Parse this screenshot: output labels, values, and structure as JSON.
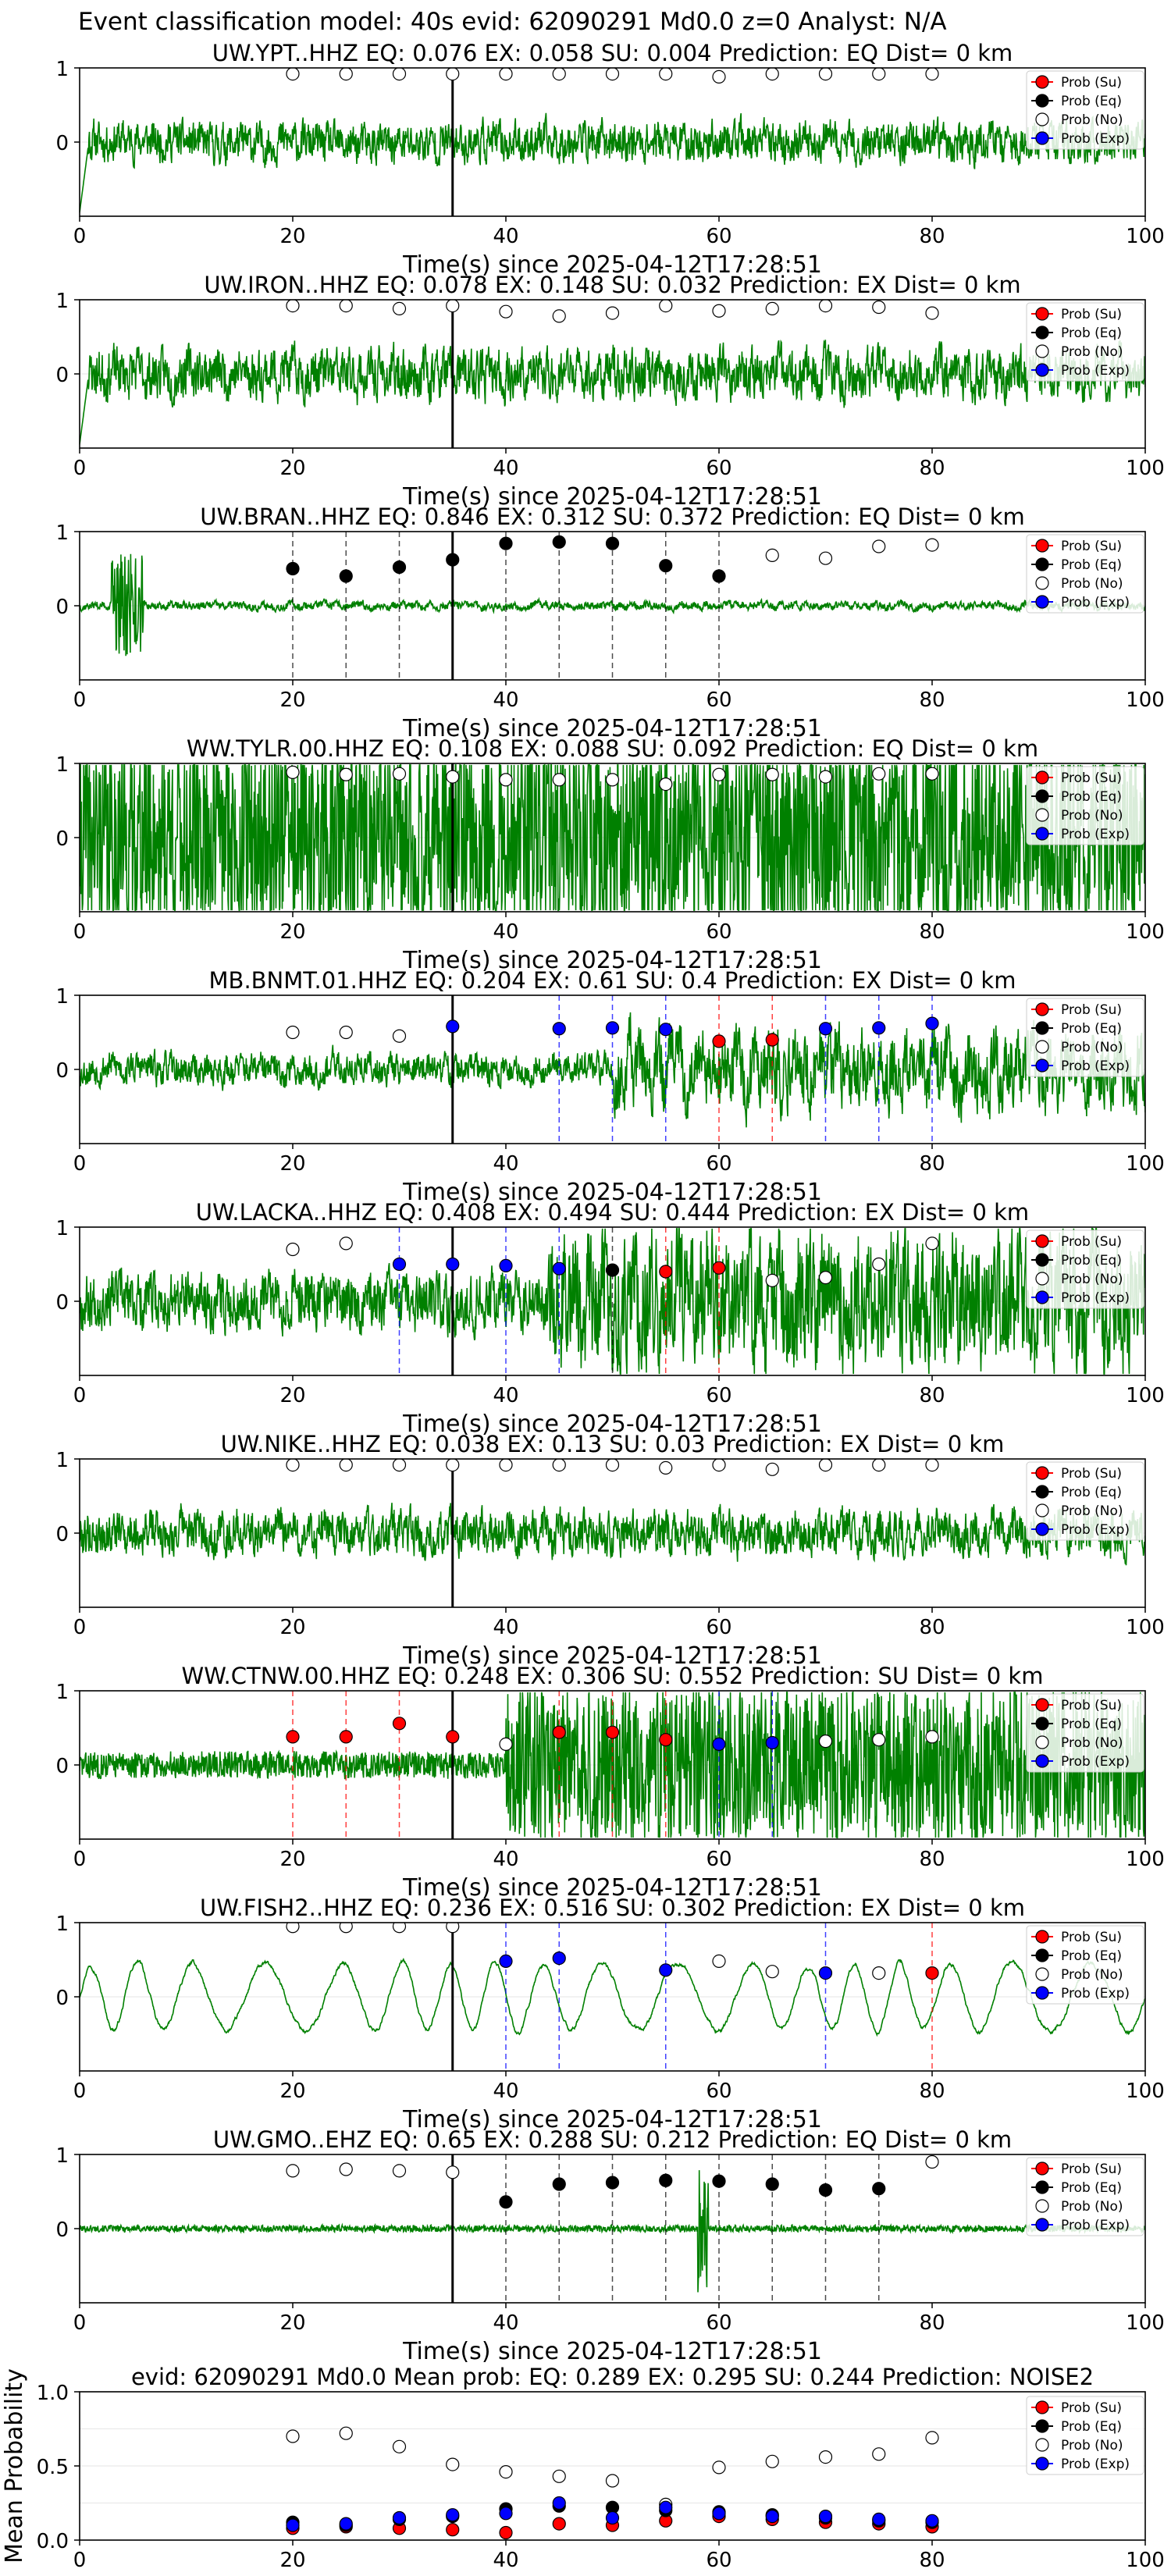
{
  "figure": {
    "suptitle": "Event classification model: 40s evid: 62090291 Md0.0 z=0 Analyst: N/A"
  },
  "colors": {
    "waveform": "#008000",
    "su": "#ff0000",
    "eq": "#000000",
    "no": "#ffffff",
    "exp": "#0000ff",
    "pick_line": "#000000"
  },
  "legend": [
    "Prob (Su)",
    "Prob (Eq)",
    "Prob (No)",
    "Prob (Exp)"
  ],
  "chart_data": [
    {
      "type": "line",
      "title": "UW.YPT..HHZ   EQ: 0.076  EX: 0.058  SU: 0.004   Prediction: EQ    Dist= 0 km",
      "xlabel": "Time(s) since 2025-04-12T17:28:51",
      "xlim": [
        0,
        100
      ],
      "ylim": [
        -1,
        1
      ],
      "xticks": [
        "0",
        "20",
        "40",
        "60",
        "80",
        "100"
      ],
      "yticks": [
        "1",
        "0"
      ],
      "pick_time": 35,
      "points": [
        {
          "t": 20,
          "p": 0.92,
          "c": "no"
        },
        {
          "t": 25,
          "p": 0.92,
          "c": "no"
        },
        {
          "t": 30,
          "p": 0.92,
          "c": "no"
        },
        {
          "t": 35,
          "p": 0.92,
          "c": "no"
        },
        {
          "t": 40,
          "p": 0.92,
          "c": "no"
        },
        {
          "t": 45,
          "p": 0.92,
          "c": "no"
        },
        {
          "t": 50,
          "p": 0.92,
          "c": "no"
        },
        {
          "t": 55,
          "p": 0.92,
          "c": "no"
        },
        {
          "t": 60,
          "p": 0.88,
          "c": "no"
        },
        {
          "t": 65,
          "p": 0.92,
          "c": "no"
        },
        {
          "t": 70,
          "p": 0.92,
          "c": "no"
        },
        {
          "t": 75,
          "p": 0.92,
          "c": "no"
        },
        {
          "t": 80,
          "p": 0.92,
          "c": "no"
        }
      ],
      "wave": {
        "amp": 0.25,
        "seed": 11,
        "onset": 0,
        "onsetAmp": 0.25,
        "lp": 0.12,
        "startDip": true
      }
    },
    {
      "type": "line",
      "title": "UW.IRON..HHZ   EQ: 0.078  EX: 0.148  SU: 0.032   Prediction: EX    Dist= 0 km",
      "xlabel": "Time(s) since 2025-04-12T17:28:51",
      "xlim": [
        0,
        100
      ],
      "ylim": [
        -1,
        1
      ],
      "xticks": [
        "0",
        "20",
        "40",
        "60",
        "80",
        "100"
      ],
      "yticks": [
        "1",
        "0"
      ],
      "pick_time": 35,
      "points": [
        {
          "t": 20,
          "p": 0.92,
          "c": "no"
        },
        {
          "t": 25,
          "p": 0.92,
          "c": "no"
        },
        {
          "t": 30,
          "p": 0.88,
          "c": "no"
        },
        {
          "t": 35,
          "p": 0.92,
          "c": "no"
        },
        {
          "t": 40,
          "p": 0.84,
          "c": "no"
        },
        {
          "t": 45,
          "p": 0.78,
          "c": "no"
        },
        {
          "t": 50,
          "p": 0.82,
          "c": "no"
        },
        {
          "t": 55,
          "p": 0.92,
          "c": "no"
        },
        {
          "t": 60,
          "p": 0.85,
          "c": "no"
        },
        {
          "t": 65,
          "p": 0.88,
          "c": "no"
        },
        {
          "t": 70,
          "p": 0.92,
          "c": "no"
        },
        {
          "t": 75,
          "p": 0.9,
          "c": "no"
        },
        {
          "t": 80,
          "p": 0.82,
          "c": "no"
        }
      ],
      "wave": {
        "amp": 0.35,
        "seed": 23,
        "onset": 0,
        "onsetAmp": 0.35,
        "lp": 0.1,
        "startDip": true
      }
    },
    {
      "type": "line",
      "title": "UW.BRAN..HHZ   EQ: 0.846  EX: 0.312  SU: 0.372   Prediction: EQ    Dist= 0 km",
      "xlabel": "Time(s) since 2025-04-12T17:28:51",
      "xlim": [
        0,
        100
      ],
      "ylim": [
        -1,
        1
      ],
      "xticks": [
        "0",
        "20",
        "40",
        "60",
        "80",
        "100"
      ],
      "yticks": [
        "1",
        "0"
      ],
      "pick_time": 35,
      "points": [
        {
          "t": 20,
          "p": 0.5,
          "c": "eq"
        },
        {
          "t": 25,
          "p": 0.4,
          "c": "eq"
        },
        {
          "t": 30,
          "p": 0.52,
          "c": "eq"
        },
        {
          "t": 35,
          "p": 0.62,
          "c": "eq"
        },
        {
          "t": 40,
          "p": 0.84,
          "c": "eq"
        },
        {
          "t": 45,
          "p": 0.86,
          "c": "eq"
        },
        {
          "t": 50,
          "p": 0.84,
          "c": "eq"
        },
        {
          "t": 55,
          "p": 0.54,
          "c": "eq"
        },
        {
          "t": 60,
          "p": 0.4,
          "c": "eq"
        },
        {
          "t": 65,
          "p": 0.68,
          "c": "no"
        },
        {
          "t": 70,
          "p": 0.64,
          "c": "no"
        },
        {
          "t": 75,
          "p": 0.8,
          "c": "no"
        },
        {
          "t": 80,
          "p": 0.82,
          "c": "no"
        }
      ],
      "wave": {
        "amp": 0.08,
        "seed": 37,
        "onset": 0,
        "onsetAmp": 0.08,
        "lp": 0.06,
        "spike": [
          3,
          6,
          0.7
        ]
      }
    },
    {
      "type": "line",
      "title": "WW.TYLR.00.HHZ   EQ: 0.108  EX: 0.088  SU: 0.092   Prediction: EQ    Dist= 0 km",
      "xlabel": "Time(s) since 2025-04-12T17:28:51",
      "xlim": [
        0,
        100
      ],
      "ylim": [
        -1,
        1
      ],
      "xticks": [
        "0",
        "20",
        "40",
        "60",
        "80",
        "100"
      ],
      "yticks": [
        "1",
        "0"
      ],
      "pick_time": 35,
      "points": [
        {
          "t": 20,
          "p": 0.88,
          "c": "no"
        },
        {
          "t": 25,
          "p": 0.85,
          "c": "no"
        },
        {
          "t": 30,
          "p": 0.86,
          "c": "no"
        },
        {
          "t": 35,
          "p": 0.82,
          "c": "no"
        },
        {
          "t": 40,
          "p": 0.78,
          "c": "no"
        },
        {
          "t": 45,
          "p": 0.78,
          "c": "no"
        },
        {
          "t": 50,
          "p": 0.78,
          "c": "no"
        },
        {
          "t": 55,
          "p": 0.72,
          "c": "no"
        },
        {
          "t": 60,
          "p": 0.85,
          "c": "no"
        },
        {
          "t": 65,
          "p": 0.85,
          "c": "no"
        },
        {
          "t": 70,
          "p": 0.82,
          "c": "no"
        },
        {
          "t": 75,
          "p": 0.86,
          "c": "no"
        },
        {
          "t": 80,
          "p": 0.86,
          "c": "no"
        }
      ],
      "wave": {
        "amp": 0.75,
        "seed": 41,
        "onset": 0,
        "onsetAmp": 0.75,
        "lp": 0.3
      }
    },
    {
      "type": "line",
      "title": "MB.BNMT.01.HHZ   EQ: 0.204  EX: 0.61  SU: 0.4   Prediction: EX    Dist= 0 km",
      "xlabel": "Time(s) since 2025-04-12T17:28:51",
      "xlim": [
        0,
        100
      ],
      "ylim": [
        -1,
        1
      ],
      "xticks": [
        "0",
        "20",
        "40",
        "60",
        "80",
        "100"
      ],
      "yticks": [
        "1",
        "0"
      ],
      "pick_time": 35,
      "points": [
        {
          "t": 20,
          "p": 0.5,
          "c": "no"
        },
        {
          "t": 25,
          "p": 0.5,
          "c": "no"
        },
        {
          "t": 30,
          "p": 0.45,
          "c": "no"
        },
        {
          "t": 35,
          "p": 0.58,
          "c": "exp"
        },
        {
          "t": 45,
          "p": 0.55,
          "c": "exp"
        },
        {
          "t": 50,
          "p": 0.56,
          "c": "exp"
        },
        {
          "t": 55,
          "p": 0.54,
          "c": "exp"
        },
        {
          "t": 60,
          "p": 0.38,
          "c": "su"
        },
        {
          "t": 65,
          "p": 0.4,
          "c": "su"
        },
        {
          "t": 70,
          "p": 0.55,
          "c": "exp"
        },
        {
          "t": 75,
          "p": 0.56,
          "c": "exp"
        },
        {
          "t": 80,
          "p": 0.62,
          "c": "exp"
        }
      ],
      "wave": {
        "amp": 0.25,
        "seed": 53,
        "onset": 50,
        "onsetAmp": 0.6,
        "lp": 0.08
      }
    },
    {
      "type": "line",
      "title": "UW.LACKA..HHZ   EQ: 0.408  EX: 0.494  SU: 0.444   Prediction: EX    Dist= 0 km",
      "xlabel": "Time(s) since 2025-04-12T17:28:51",
      "xlim": [
        0,
        100
      ],
      "ylim": [
        -1,
        1
      ],
      "xticks": [
        "0",
        "20",
        "40",
        "60",
        "80",
        "100"
      ],
      "yticks": [
        "1",
        "0"
      ],
      "pick_time": 35,
      "points": [
        {
          "t": 20,
          "p": 0.7,
          "c": "no"
        },
        {
          "t": 25,
          "p": 0.78,
          "c": "no"
        },
        {
          "t": 30,
          "p": 0.5,
          "c": "exp"
        },
        {
          "t": 35,
          "p": 0.5,
          "c": "exp"
        },
        {
          "t": 40,
          "p": 0.48,
          "c": "exp"
        },
        {
          "t": 45,
          "p": 0.44,
          "c": "exp"
        },
        {
          "t": 50,
          "p": 0.42,
          "c": "eq"
        },
        {
          "t": 55,
          "p": 0.4,
          "c": "su"
        },
        {
          "t": 60,
          "p": 0.45,
          "c": "su"
        },
        {
          "t": 65,
          "p": 0.28,
          "c": "no"
        },
        {
          "t": 70,
          "p": 0.32,
          "c": "no"
        },
        {
          "t": 75,
          "p": 0.5,
          "c": "no"
        },
        {
          "t": 80,
          "p": 0.78,
          "c": "no"
        }
      ],
      "wave": {
        "amp": 0.35,
        "seed": 67,
        "onset": 44,
        "onsetAmp": 0.85,
        "lp": 0.12
      }
    },
    {
      "type": "line",
      "title": "UW.NIKE..HHZ   EQ: 0.038  EX: 0.13  SU: 0.03   Prediction: EX    Dist= 0 km",
      "xlabel": "Time(s) since 2025-04-12T17:28:51",
      "xlim": [
        0,
        100
      ],
      "ylim": [
        -1,
        1
      ],
      "xticks": [
        "0",
        "20",
        "40",
        "60",
        "80",
        "100"
      ],
      "yticks": [
        "1",
        "0"
      ],
      "pick_time": 35,
      "points": [
        {
          "t": 20,
          "p": 0.92,
          "c": "no"
        },
        {
          "t": 25,
          "p": 0.92,
          "c": "no"
        },
        {
          "t": 30,
          "p": 0.92,
          "c": "no"
        },
        {
          "t": 35,
          "p": 0.92,
          "c": "no"
        },
        {
          "t": 40,
          "p": 0.92,
          "c": "no"
        },
        {
          "t": 45,
          "p": 0.92,
          "c": "no"
        },
        {
          "t": 50,
          "p": 0.92,
          "c": "no"
        },
        {
          "t": 55,
          "p": 0.88,
          "c": "no"
        },
        {
          "t": 60,
          "p": 0.92,
          "c": "no"
        },
        {
          "t": 65,
          "p": 0.86,
          "c": "no"
        },
        {
          "t": 70,
          "p": 0.92,
          "c": "no"
        },
        {
          "t": 75,
          "p": 0.92,
          "c": "no"
        },
        {
          "t": 80,
          "p": 0.92,
          "c": "no"
        }
      ],
      "wave": {
        "amp": 0.35,
        "seed": 79,
        "onset": 0,
        "onsetAmp": 0.35,
        "lp": 0.08
      }
    },
    {
      "type": "line",
      "title": "WW.CTNW.00.HHZ   EQ: 0.248  EX: 0.306  SU: 0.552   Prediction: SU    Dist= 0 km",
      "xlabel": "Time(s) since 2025-04-12T17:28:51",
      "xlim": [
        0,
        100
      ],
      "ylim": [
        -1,
        1
      ],
      "xticks": [
        "0",
        "20",
        "40",
        "60",
        "80",
        "100"
      ],
      "yticks": [
        "1",
        "0"
      ],
      "pick_time": 35,
      "points": [
        {
          "t": 20,
          "p": 0.38,
          "c": "su"
        },
        {
          "t": 25,
          "p": 0.38,
          "c": "su"
        },
        {
          "t": 30,
          "p": 0.56,
          "c": "su"
        },
        {
          "t": 35,
          "p": 0.38,
          "c": "su"
        },
        {
          "t": 40,
          "p": 0.28,
          "c": "no"
        },
        {
          "t": 45,
          "p": 0.44,
          "c": "su"
        },
        {
          "t": 50,
          "p": 0.44,
          "c": "su"
        },
        {
          "t": 55,
          "p": 0.34,
          "c": "su"
        },
        {
          "t": 60,
          "p": 0.28,
          "c": "exp"
        },
        {
          "t": 65,
          "p": 0.3,
          "c": "exp"
        },
        {
          "t": 70,
          "p": 0.32,
          "c": "no"
        },
        {
          "t": 75,
          "p": 0.34,
          "c": "no"
        },
        {
          "t": 80,
          "p": 0.38,
          "c": "no"
        }
      ],
      "wave": {
        "amp": 0.1,
        "seed": 83,
        "onset": 40,
        "onsetAmp": 0.6,
        "lp": 0.3
      }
    },
    {
      "type": "line",
      "title": "UW.FISH2..HHZ   EQ: 0.236  EX: 0.516  SU: 0.302   Prediction: EX    Dist= 0 km",
      "xlabel": "Time(s) since 2025-04-12T17:28:51",
      "xlim": [
        0,
        100
      ],
      "ylim": [
        -1,
        1
      ],
      "xticks": [
        "0",
        "20",
        "40",
        "60",
        "80",
        "100"
      ],
      "yticks": [
        "1",
        "0"
      ],
      "pick_time": 35,
      "points": [
        {
          "t": 20,
          "p": 0.95,
          "c": "no"
        },
        {
          "t": 25,
          "p": 0.95,
          "c": "no"
        },
        {
          "t": 30,
          "p": 0.95,
          "c": "no"
        },
        {
          "t": 35,
          "p": 0.95,
          "c": "no"
        },
        {
          "t": 40,
          "p": 0.48,
          "c": "exp"
        },
        {
          "t": 45,
          "p": 0.52,
          "c": "exp"
        },
        {
          "t": 55,
          "p": 0.36,
          "c": "exp"
        },
        {
          "t": 60,
          "p": 0.48,
          "c": "no"
        },
        {
          "t": 65,
          "p": 0.34,
          "c": "no"
        },
        {
          "t": 70,
          "p": 0.32,
          "c": "exp"
        },
        {
          "t": 75,
          "p": 0.32,
          "c": "no"
        },
        {
          "t": 80,
          "p": 0.32,
          "c": "su"
        }
      ],
      "wave": {
        "amp": 0.5,
        "seed": 97,
        "onset": 0,
        "onsetAmp": 0.5,
        "lp": 0.02,
        "sine": true
      }
    },
    {
      "type": "line",
      "title": "UW.GMO..EHZ   EQ: 0.65  EX: 0.288  SU: 0.212   Prediction: EQ    Dist= 0 km",
      "xlabel": "Time(s) since 2025-04-12T17:28:51",
      "xlim": [
        0,
        100
      ],
      "ylim": [
        -1,
        1
      ],
      "xticks": [
        "0",
        "20",
        "40",
        "60",
        "80",
        "100"
      ],
      "yticks": [
        "1",
        "0"
      ],
      "pick_time": 35,
      "points": [
        {
          "t": 20,
          "p": 0.78,
          "c": "no"
        },
        {
          "t": 25,
          "p": 0.8,
          "c": "no"
        },
        {
          "t": 30,
          "p": 0.78,
          "c": "no"
        },
        {
          "t": 35,
          "p": 0.76,
          "c": "no"
        },
        {
          "t": 40,
          "p": 0.36,
          "c": "eq"
        },
        {
          "t": 45,
          "p": 0.6,
          "c": "eq"
        },
        {
          "t": 50,
          "p": 0.62,
          "c": "eq"
        },
        {
          "t": 55,
          "p": 0.65,
          "c": "eq"
        },
        {
          "t": 60,
          "p": 0.64,
          "c": "eq"
        },
        {
          "t": 65,
          "p": 0.6,
          "c": "eq"
        },
        {
          "t": 70,
          "p": 0.52,
          "c": "eq"
        },
        {
          "t": 75,
          "p": 0.54,
          "c": "eq"
        },
        {
          "t": 80,
          "p": 0.9,
          "c": "no"
        }
      ],
      "wave": {
        "amp": 0.025,
        "seed": 101,
        "onset": 0,
        "onsetAmp": 0.025,
        "lp": 0.3,
        "spike": [
          58,
          59,
          0.9
        ]
      }
    },
    {
      "type": "scatter",
      "title": "evid: 62090291  Md0.0   Mean prob:   EQ: 0.289  EX: 0.295  SU: 0.244   Prediction: NOISE2",
      "ylabel": "Mean Probability",
      "xlim": [
        0,
        100
      ],
      "ylim": [
        0,
        1
      ],
      "xticks": [
        "0",
        "20",
        "40",
        "60",
        "80",
        "100"
      ],
      "yticks": [
        "1.0",
        "0.5",
        "0.0"
      ],
      "series": [
        {
          "name": "Prob (Su)",
          "c": "su",
          "x": [
            20,
            25,
            30,
            35,
            40,
            45,
            50,
            55,
            60,
            65,
            70,
            75,
            80
          ],
          "y": [
            0.08,
            0.09,
            0.08,
            0.07,
            0.05,
            0.11,
            0.1,
            0.13,
            0.16,
            0.14,
            0.12,
            0.11,
            0.09
          ]
        },
        {
          "name": "Prob (Eq)",
          "c": "eq",
          "x": [
            20,
            25,
            30,
            35,
            40,
            45,
            50,
            55,
            60,
            65,
            70,
            75,
            80
          ],
          "y": [
            0.12,
            0.1,
            0.14,
            0.16,
            0.21,
            0.23,
            0.22,
            0.2,
            0.19,
            0.17,
            0.15,
            0.13,
            0.12
          ]
        },
        {
          "name": "Prob (No)",
          "c": "no",
          "x": [
            20,
            25,
            30,
            35,
            40,
            45,
            50,
            55,
            60,
            65,
            70,
            75,
            80
          ],
          "y": [
            0.7,
            0.72,
            0.63,
            0.51,
            0.46,
            0.43,
            0.4,
            0.24,
            0.49,
            0.53,
            0.56,
            0.58,
            0.69
          ]
        },
        {
          "name": "Prob (Exp)",
          "c": "exp",
          "x": [
            20,
            25,
            30,
            35,
            40,
            45,
            50,
            55,
            60,
            65,
            70,
            75,
            80
          ],
          "y": [
            0.1,
            0.11,
            0.15,
            0.17,
            0.18,
            0.25,
            0.15,
            0.22,
            0.18,
            0.16,
            0.16,
            0.14,
            0.13
          ]
        }
      ]
    }
  ]
}
